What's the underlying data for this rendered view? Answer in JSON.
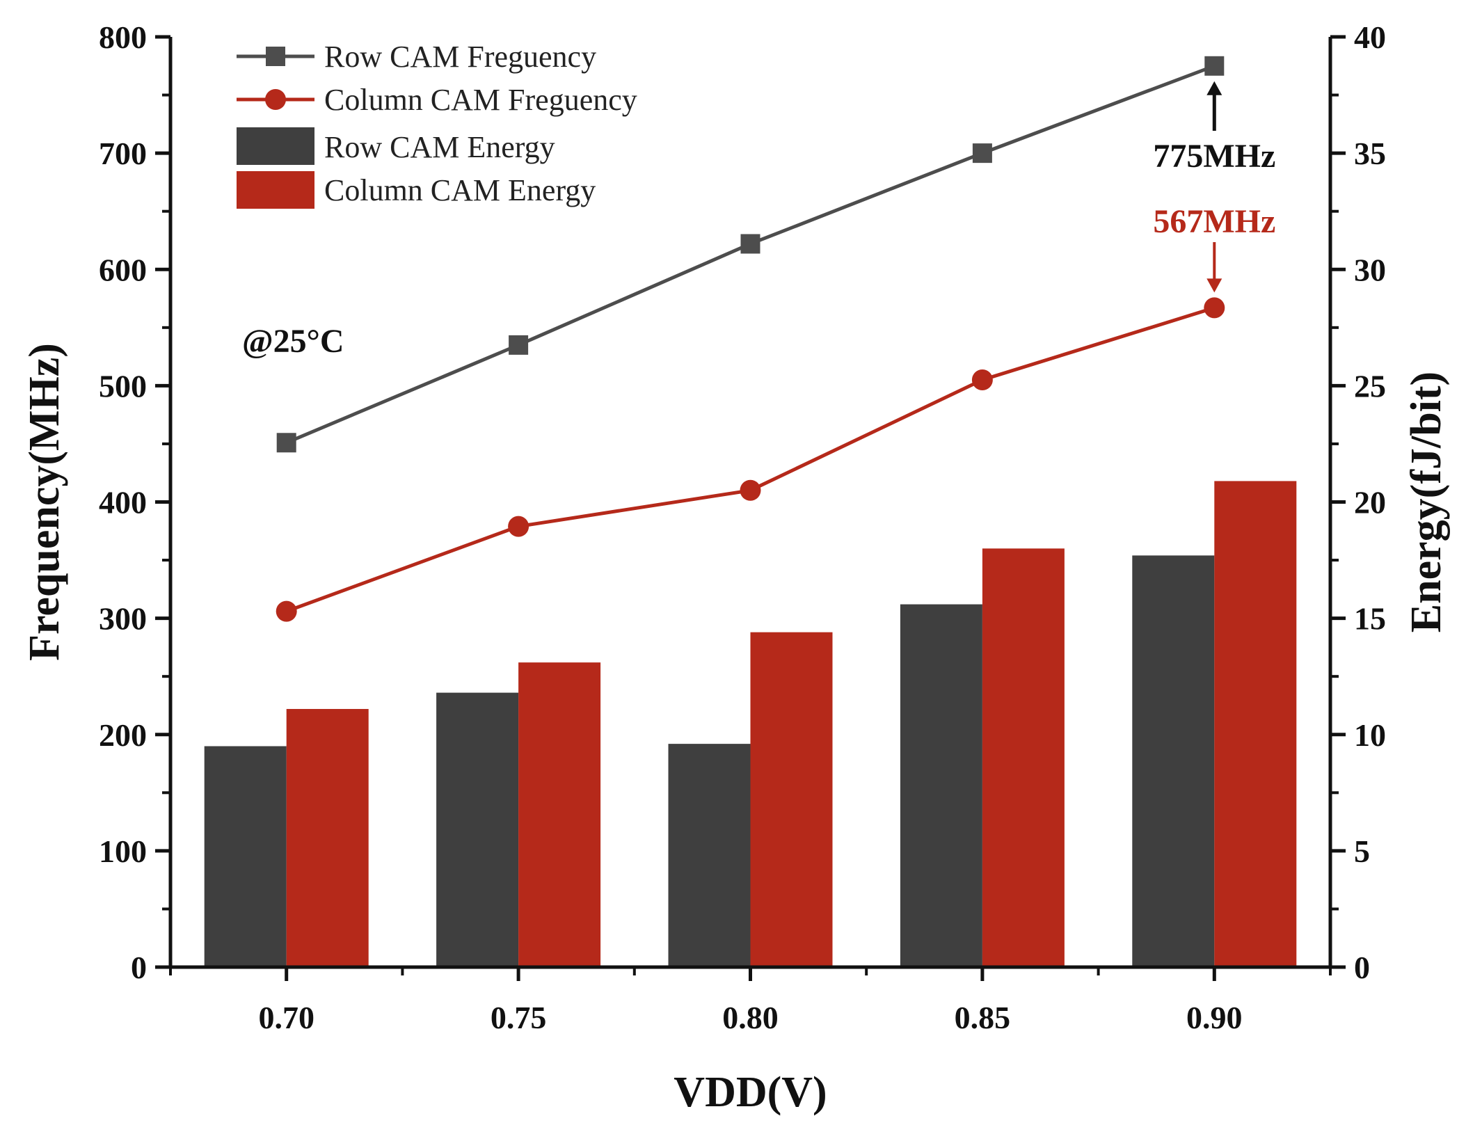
{
  "chart_data": {
    "type": "bar+line",
    "categories": [
      "0.70",
      "0.75",
      "0.80",
      "0.85",
      "0.90"
    ],
    "x_values": [
      0.7,
      0.75,
      0.8,
      0.85,
      0.9
    ],
    "xlabel": "VDD(V)",
    "ylabel_left": "Frequency(MHz)",
    "ylabel_right": "Energy(fJ/bit)",
    "ylim_left": [
      0,
      800
    ],
    "ylim_right": [
      0,
      40
    ],
    "yticks_left": [
      "0",
      "100",
      "200",
      "300",
      "400",
      "500",
      "600",
      "700",
      "800"
    ],
    "yticks_right": [
      "0",
      "5",
      "10",
      "15",
      "20",
      "25",
      "30",
      "35",
      "40"
    ],
    "series": [
      {
        "name": "Row CAM Freguency",
        "type": "line",
        "axis": "left",
        "marker": "square",
        "color": "#4d4d4d",
        "values": [
          451,
          535,
          622,
          700,
          775
        ]
      },
      {
        "name": "Column CAM Freguency",
        "type": "line",
        "axis": "left",
        "marker": "circle",
        "color": "#b5291a",
        "values": [
          306,
          379,
          410,
          505,
          567
        ]
      },
      {
        "name": "Row CAM Energy",
        "type": "bar",
        "axis": "right",
        "color": "#3f3f3f",
        "values": [
          9.5,
          11.8,
          9.6,
          15.6,
          17.7
        ]
      },
      {
        "name": "Column CAM Energy",
        "type": "bar",
        "axis": "right",
        "color": "#b5291a",
        "values": [
          11.1,
          13.1,
          14.4,
          18.0,
          20.9
        ]
      }
    ],
    "annotations": [
      {
        "text": "775MHz",
        "series": "Row CAM Freguency",
        "category": "0.90",
        "color": "#111111"
      },
      {
        "text": "567MHz",
        "series": "Column CAM Freguency",
        "category": "0.90",
        "color": "#b5291a"
      },
      {
        "text": "@25°C",
        "color": "#111111"
      }
    ],
    "legend_position": "top-left",
    "grid": false
  }
}
